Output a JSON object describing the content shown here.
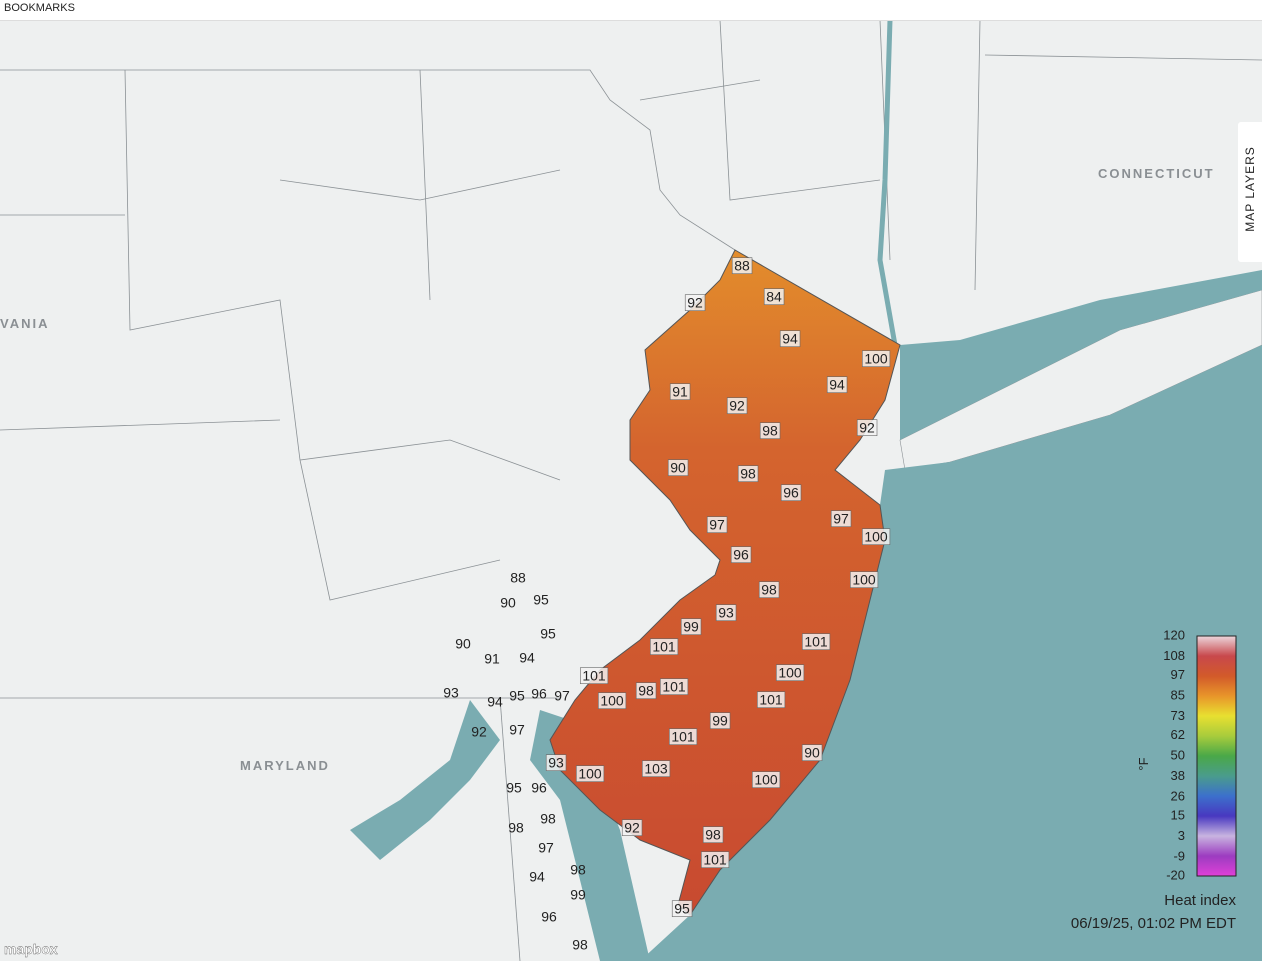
{
  "bookmarks": "BOOKMARKS",
  "map_layers": "MAP LAYERS",
  "place_labels": [
    "VANIA",
    "MARYLAND",
    "CONNECTICUT"
  ],
  "attribution": "mapbox",
  "nj_stations": [
    88,
    92,
    84,
    94,
    100,
    94,
    91,
    92,
    92,
    98,
    90,
    98,
    96,
    97,
    100,
    97,
    96,
    100,
    98,
    93,
    99,
    101,
    101,
    100,
    101,
    98,
    101,
    100,
    101,
    99,
    101,
    90,
    93,
    100,
    103,
    100,
    92,
    98,
    101,
    95
  ],
  "other_stations": [
    88,
    90,
    95,
    95,
    90,
    91,
    94,
    93,
    94,
    95,
    96,
    97,
    92,
    97,
    95,
    96,
    98,
    98,
    97,
    94,
    98,
    99,
    96,
    98
  ],
  "legend": {
    "ticks": [
      120,
      108,
      97,
      85,
      73,
      62,
      50,
      38,
      26,
      15,
      3,
      -9,
      -20
    ],
    "colors": [
      "#ecd6dc",
      "#c8484c",
      "#d25a2a",
      "#e8952a",
      "#e8e030",
      "#a8cc3c",
      "#4aa848",
      "#4a9c8c",
      "#3c70cc",
      "#4838c0",
      "#c8b4e0",
      "#9c3cc0",
      "#e040d8"
    ],
    "unit": "°F",
    "title": "Heat index",
    "timestamp": "06/19/25, 01:02 PM EDT"
  }
}
